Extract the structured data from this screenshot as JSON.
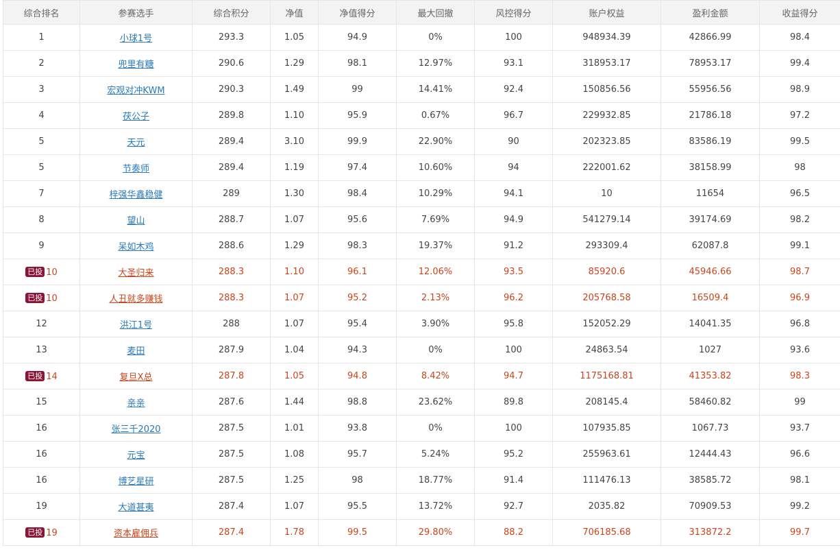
{
  "colors": {
    "highlight": "#c8451c",
    "link": "#2a79b8",
    "badge": "#8a1538",
    "header_bg": "#f3f3f3"
  },
  "headers": [
    "综合排名",
    "参赛选手",
    "综合积分",
    "净值",
    "净值得分",
    "最大回撤",
    "风控得分",
    "账户权益",
    "盈利金额",
    "收益得分"
  ],
  "badge_label": "已投",
  "rows": [
    {
      "rank": "1",
      "name": "小球1号",
      "score": "293.3",
      "nav": "1.05",
      "nav_score": "94.9",
      "drawdown": "0%",
      "risk_score": "100",
      "equity": "948934.39",
      "profit": "42866.99",
      "return_score": "98.4",
      "invested": false
    },
    {
      "rank": "2",
      "name": "兜里有糖",
      "score": "290.6",
      "nav": "1.29",
      "nav_score": "98.1",
      "drawdown": "12.97%",
      "risk_score": "93.1",
      "equity": "318953.17",
      "profit": "78953.17",
      "return_score": "99.4",
      "invested": false
    },
    {
      "rank": "3",
      "name": "宏观对冲KWM",
      "score": "290.3",
      "nav": "1.49",
      "nav_score": "99",
      "drawdown": "14.41%",
      "risk_score": "92.4",
      "equity": "150856.56",
      "profit": "55956.56",
      "return_score": "98.9",
      "invested": false
    },
    {
      "rank": "4",
      "name": "茯公子",
      "score": "289.8",
      "nav": "1.10",
      "nav_score": "95.9",
      "drawdown": "0.67%",
      "risk_score": "96.7",
      "equity": "229932.85",
      "profit": "21786.18",
      "return_score": "97.2",
      "invested": false
    },
    {
      "rank": "5",
      "name": "天元",
      "score": "289.4",
      "nav": "3.10",
      "nav_score": "99.9",
      "drawdown": "22.90%",
      "risk_score": "90",
      "equity": "202323.85",
      "profit": "83586.19",
      "return_score": "99.5",
      "invested": false
    },
    {
      "rank": "5",
      "name": "节奏师",
      "score": "289.4",
      "nav": "1.19",
      "nav_score": "97.4",
      "drawdown": "10.60%",
      "risk_score": "94",
      "equity": "222001.62",
      "profit": "38158.99",
      "return_score": "98",
      "invested": false
    },
    {
      "rank": "7",
      "name": "梓强华鑫稳健",
      "score": "289",
      "nav": "1.30",
      "nav_score": "98.4",
      "drawdown": "10.29%",
      "risk_score": "94.1",
      "equity": "10",
      "profit": "11654",
      "return_score": "96.5",
      "invested": false
    },
    {
      "rank": "8",
      "name": "望山",
      "score": "288.7",
      "nav": "1.07",
      "nav_score": "95.6",
      "drawdown": "7.69%",
      "risk_score": "94.9",
      "equity": "541279.14",
      "profit": "39174.69",
      "return_score": "98.2",
      "invested": false
    },
    {
      "rank": "9",
      "name": "呆如木鸡",
      "score": "288.6",
      "nav": "1.29",
      "nav_score": "98.3",
      "drawdown": "19.37%",
      "risk_score": "91.2",
      "equity": "293309.4",
      "profit": "62087.8",
      "return_score": "99.1",
      "invested": false
    },
    {
      "rank": "10",
      "name": "大圣归来",
      "score": "288.3",
      "nav": "1.10",
      "nav_score": "96.1",
      "drawdown": "12.06%",
      "risk_score": "93.5",
      "equity": "85920.6",
      "profit": "45946.66",
      "return_score": "98.7",
      "invested": true
    },
    {
      "rank": "10",
      "name": "人丑就多赚钱",
      "score": "288.3",
      "nav": "1.07",
      "nav_score": "95.2",
      "drawdown": "2.13%",
      "risk_score": "96.2",
      "equity": "205768.58",
      "profit": "16509.4",
      "return_score": "96.9",
      "invested": true
    },
    {
      "rank": "12",
      "name": "洪江1号",
      "score": "288",
      "nav": "1.07",
      "nav_score": "95.4",
      "drawdown": "3.90%",
      "risk_score": "95.8",
      "equity": "152052.29",
      "profit": "14041.35",
      "return_score": "96.8",
      "invested": false
    },
    {
      "rank": "13",
      "name": "麦田",
      "score": "287.9",
      "nav": "1.04",
      "nav_score": "94.3",
      "drawdown": "0%",
      "risk_score": "100",
      "equity": "24863.54",
      "profit": "1027",
      "return_score": "93.6",
      "invested": false
    },
    {
      "rank": "14",
      "name": "复旦X总",
      "score": "287.8",
      "nav": "1.05",
      "nav_score": "94.8",
      "drawdown": "8.42%",
      "risk_score": "94.7",
      "equity": "1175168.81",
      "profit": "41353.82",
      "return_score": "98.3",
      "invested": true
    },
    {
      "rank": "15",
      "name": "亲亲",
      "score": "287.6",
      "nav": "1.44",
      "nav_score": "98.8",
      "drawdown": "23.62%",
      "risk_score": "89.8",
      "equity": "208145.4",
      "profit": "58460.82",
      "return_score": "99",
      "invested": false
    },
    {
      "rank": "16",
      "name": "张三千2020",
      "score": "287.5",
      "nav": "1.01",
      "nav_score": "93.8",
      "drawdown": "0%",
      "risk_score": "100",
      "equity": "107935.85",
      "profit": "1067.73",
      "return_score": "93.7",
      "invested": false
    },
    {
      "rank": "16",
      "name": "元宝",
      "score": "287.5",
      "nav": "1.08",
      "nav_score": "95.7",
      "drawdown": "5.24%",
      "risk_score": "95.2",
      "equity": "255963.61",
      "profit": "12444.43",
      "return_score": "96.6",
      "invested": false
    },
    {
      "rank": "16",
      "name": "博艺星研",
      "score": "287.5",
      "nav": "1.25",
      "nav_score": "98",
      "drawdown": "18.77%",
      "risk_score": "91.4",
      "equity": "111476.13",
      "profit": "38585.72",
      "return_score": "98.1",
      "invested": false
    },
    {
      "rank": "19",
      "name": "大道甚夷",
      "score": "287.4",
      "nav": "1.07",
      "nav_score": "95.5",
      "drawdown": "13.72%",
      "risk_score": "92.7",
      "equity": "2035.82",
      "profit": "70909.53",
      "return_score": "99.2",
      "invested": false
    },
    {
      "rank": "19",
      "name": "资本雇佣兵",
      "score": "287.4",
      "nav": "1.78",
      "nav_score": "99.5",
      "drawdown": "29.80%",
      "risk_score": "88.2",
      "equity": "706185.68",
      "profit": "313872.2",
      "return_score": "99.7",
      "invested": true
    }
  ]
}
